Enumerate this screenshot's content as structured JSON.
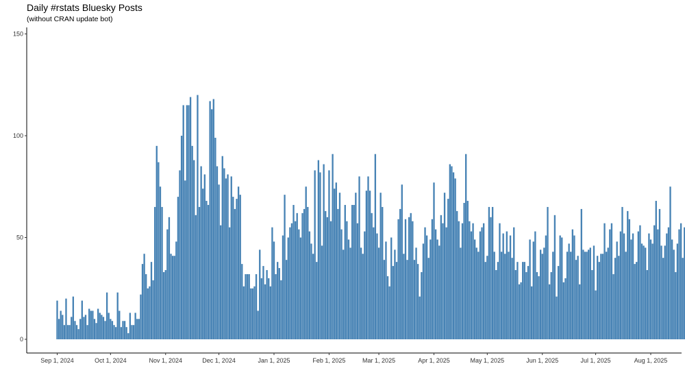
{
  "chart_data": {
    "type": "bar",
    "title": "Daily #rstats Bluesky Posts",
    "subtitle": "(without CRAN update bot)",
    "xlabel": "",
    "ylabel": "",
    "ylim": [
      0,
      155
    ],
    "yticks": [
      0,
      50,
      100,
      150
    ],
    "grid": false,
    "color": "#4682b4",
    "x_start_date": "2024-09-01",
    "x_end_date": "2025-08-01",
    "xticks": [
      {
        "date": "2024-09-01",
        "label": "Sep 1, 2024"
      },
      {
        "date": "2024-10-01",
        "label": "Oct 1, 2024"
      },
      {
        "date": "2024-11-01",
        "label": "Nov 1, 2024"
      },
      {
        "date": "2024-12-01",
        "label": "Dec 1, 2024"
      },
      {
        "date": "2025-01-01",
        "label": "Jan 1, 2025"
      },
      {
        "date": "2025-02-01",
        "label": "Feb 1, 2025"
      },
      {
        "date": "2025-03-01",
        "label": "Mar 1, 2025"
      },
      {
        "date": "2025-04-01",
        "label": "Apr 1, 2025"
      },
      {
        "date": "2025-05-01",
        "label": "May 1, 2025"
      },
      {
        "date": "2025-06-01",
        "label": "Jun 1, 2025"
      },
      {
        "date": "2025-07-01",
        "label": "Jul 1, 2025"
      },
      {
        "date": "2025-08-01",
        "label": "Aug 1, 2025"
      }
    ],
    "values": [
      19,
      10,
      14,
      12,
      7,
      20,
      7,
      7,
      11,
      21,
      9,
      7,
      5,
      10,
      19,
      11,
      12,
      7,
      15,
      14,
      14,
      10,
      8,
      15,
      13,
      12,
      11,
      9,
      23,
      13,
      10,
      9,
      7,
      6,
      23,
      14,
      6,
      9,
      9,
      6,
      3,
      13,
      7,
      7,
      13,
      10,
      10,
      22,
      37,
      42,
      32,
      25,
      26,
      38,
      29,
      65,
      95,
      87,
      75,
      65,
      33,
      34,
      54,
      60,
      42,
      41,
      41,
      48,
      70,
      83,
      100,
      115,
      78,
      115,
      115,
      119,
      95,
      88,
      61,
      120,
      65,
      85,
      74,
      81,
      68,
      66,
      117,
      113,
      118,
      99,
      85,
      76,
      56,
      90,
      84,
      79,
      81,
      55,
      80,
      70,
      64,
      69,
      75,
      71,
      37,
      26,
      32,
      32,
      32,
      25,
      25,
      26,
      32,
      14,
      44,
      30,
      36,
      27,
      34,
      30,
      26,
      55,
      48,
      32,
      38,
      35,
      29,
      51,
      71,
      39,
      50,
      55,
      57,
      66,
      58,
      62,
      54,
      50,
      62,
      64,
      75,
      65,
      53,
      47,
      42,
      83,
      38,
      88,
      82,
      46,
      86,
      63,
      60,
      83,
      58,
      91,
      74,
      77,
      64,
      72,
      54,
      44,
      66,
      58,
      49,
      45,
      66,
      66,
      72,
      57,
      80,
      45,
      42,
      53,
      73,
      80,
      73,
      62,
      55,
      91,
      52,
      45,
      72,
      65,
      39,
      48,
      31,
      26,
      50,
      36,
      44,
      38,
      59,
      64,
      76,
      42,
      59,
      39,
      60,
      62,
      58,
      39,
      45,
      37,
      21,
      33,
      47,
      55,
      51,
      40,
      49,
      59,
      77,
      54,
      49,
      46,
      61,
      57,
      72,
      55,
      69,
      86,
      85,
      82,
      79,
      63,
      58,
      45,
      57,
      67,
      91,
      68,
      58,
      53,
      57,
      49,
      45,
      43,
      53,
      55,
      57,
      38,
      41,
      65,
      60,
      65,
      43,
      34,
      38,
      57,
      43,
      52,
      42,
      53,
      43,
      51,
      40,
      55,
      34,
      38,
      27,
      28,
      38,
      38,
      33,
      36,
      49,
      26,
      48,
      53,
      33,
      31,
      44,
      42,
      45,
      51,
      65,
      27,
      33,
      43,
      61,
      21,
      36,
      51,
      50,
      28,
      30,
      43,
      47,
      43,
      54,
      51,
      39,
      41,
      27,
      64,
      44,
      43,
      43,
      44,
      45,
      34,
      46,
      24,
      41,
      38,
      42,
      42,
      57,
      43,
      45,
      54,
      57,
      32,
      40,
      48,
      41,
      53,
      65,
      52,
      43,
      63,
      59,
      49,
      52,
      37,
      38,
      53,
      56,
      47,
      46,
      45,
      34,
      52,
      49,
      47,
      56,
      68,
      54,
      64,
      46,
      40,
      46,
      52,
      55,
      75,
      49,
      44,
      33,
      47,
      54,
      57,
      40,
      55,
      88
    ]
  }
}
